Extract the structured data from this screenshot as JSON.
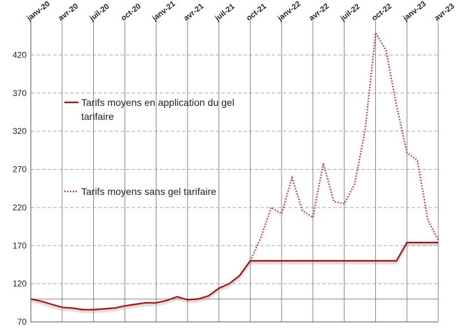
{
  "chart_data": {
    "type": "line",
    "categories": [
      "janv-20",
      null,
      null,
      "avr-20",
      null,
      null,
      "juil-20",
      null,
      null,
      "oct-20",
      null,
      null,
      "janv-21",
      null,
      null,
      "avr-21",
      null,
      null,
      "juil-21",
      null,
      null,
      "oct-21",
      null,
      null,
      "janv-22",
      null,
      null,
      "avr-22",
      null,
      null,
      "juil-22",
      null,
      null,
      "oct-22",
      null,
      null,
      "janv-23",
      null,
      null,
      "avr-23"
    ],
    "series": [
      {
        "name": "Tarifs moyens en application du gel tarifaire",
        "color": "#b01010",
        "style": "solid",
        "values": [
          100,
          97,
          93,
          89,
          88,
          86,
          86,
          87,
          88,
          91,
          93,
          95,
          95,
          98,
          103,
          99,
          100,
          104,
          114,
          120,
          131,
          150,
          150,
          150,
          150,
          150,
          150,
          150,
          150,
          150,
          150,
          150,
          150,
          150,
          150,
          150,
          174,
          174,
          174,
          174
        ]
      },
      {
        "name": "Tarifs moyens sans gel tarifaire",
        "color": "#b01010",
        "style": "dotted",
        "values": [
          null,
          null,
          null,
          null,
          null,
          null,
          null,
          null,
          null,
          null,
          null,
          null,
          null,
          null,
          null,
          null,
          null,
          null,
          null,
          null,
          null,
          150,
          180,
          220,
          212,
          259,
          216,
          207,
          278,
          228,
          225,
          251,
          322,
          449,
          426,
          354,
          292,
          282,
          204,
          177
        ]
      }
    ],
    "ylim": [
      70,
      470
    ],
    "yticks": [
      70,
      120,
      170,
      220,
      270,
      320,
      370,
      420
    ],
    "reference_line": 100,
    "grid": true
  }
}
